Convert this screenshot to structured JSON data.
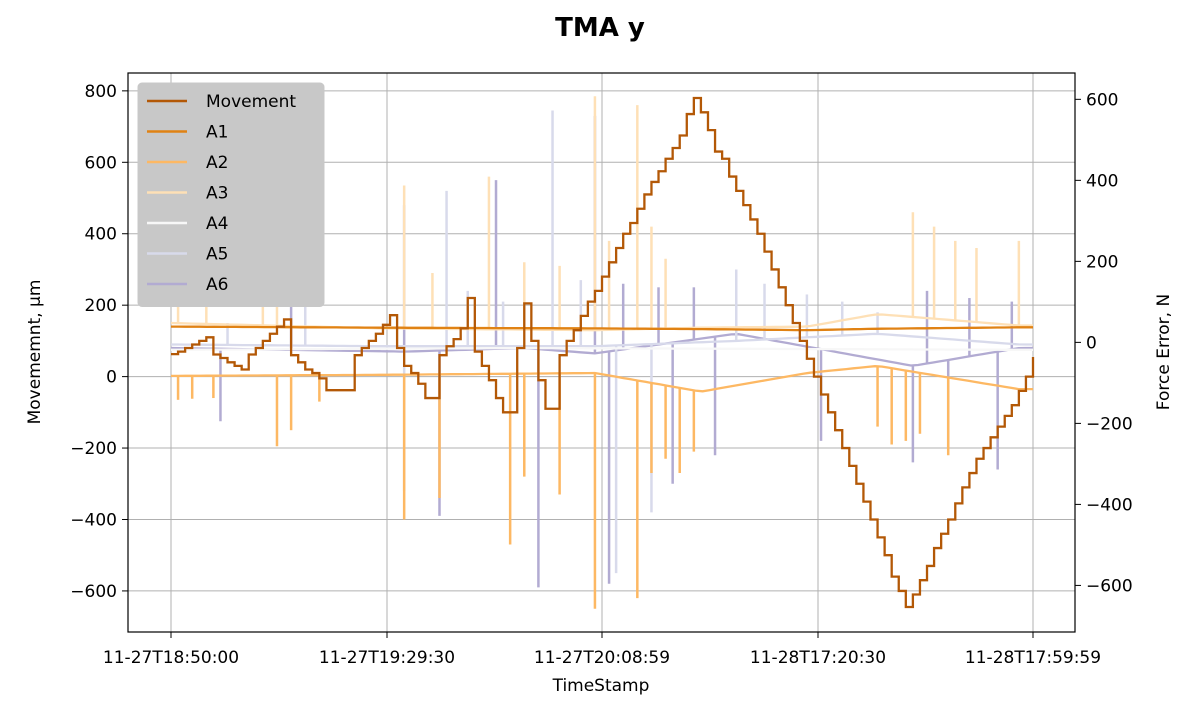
{
  "chart_data": {
    "type": "line",
    "title": "TMA y",
    "xlabel": "TimeStamp",
    "ylabel": "Movememnt, $\\mu$m",
    "ylabel_text": "Movememnt, μm",
    "ylabel_right": "Force Error, N",
    "x_tick_labels": [
      "11-27T18:50:00",
      "11-27T19:29:30",
      "11-27T20:08:59",
      "11-28T17:20:30",
      "11-28T17:59:59"
    ],
    "ylim": [
      -715,
      850
    ],
    "ylim_right": [
      -715,
      665
    ],
    "y_ticks": [
      -600,
      -400,
      -200,
      0,
      200,
      400,
      600,
      800
    ],
    "y_ticks_right": [
      -600,
      -400,
      -200,
      0,
      200,
      400,
      600
    ],
    "grid": true,
    "legend_position": "top-left",
    "series": [
      {
        "name": "Movement",
        "axis": "left",
        "color": "#b35806",
        "step": true,
        "values": [
          [
            0.0,
            63
          ],
          [
            0.01,
            70
          ],
          [
            0.02,
            80
          ],
          [
            0.03,
            90
          ],
          [
            0.04,
            100
          ],
          [
            0.05,
            110
          ],
          [
            0.06,
            62
          ],
          [
            0.07,
            52
          ],
          [
            0.08,
            40
          ],
          [
            0.09,
            30
          ],
          [
            0.1,
            20
          ],
          [
            0.11,
            62
          ],
          [
            0.12,
            80
          ],
          [
            0.13,
            100
          ],
          [
            0.14,
            120
          ],
          [
            0.15,
            140
          ],
          [
            0.16,
            160
          ],
          [
            0.17,
            60
          ],
          [
            0.18,
            40
          ],
          [
            0.19,
            20
          ],
          [
            0.2,
            10
          ],
          [
            0.21,
            -5
          ],
          [
            0.22,
            -38
          ],
          [
            0.23,
            -38
          ],
          [
            0.24,
            -38
          ],
          [
            0.25,
            -38
          ],
          [
            0.26,
            60
          ],
          [
            0.27,
            80
          ],
          [
            0.28,
            100
          ],
          [
            0.29,
            120
          ],
          [
            0.3,
            145
          ],
          [
            0.31,
            172
          ],
          [
            0.32,
            80
          ],
          [
            0.33,
            30
          ],
          [
            0.34,
            10
          ],
          [
            0.35,
            -20
          ],
          [
            0.36,
            -60
          ],
          [
            0.37,
            -60
          ],
          [
            0.38,
            60
          ],
          [
            0.39,
            85
          ],
          [
            0.4,
            105
          ],
          [
            0.41,
            135
          ],
          [
            0.42,
            220
          ],
          [
            0.43,
            70
          ],
          [
            0.44,
            30
          ],
          [
            0.45,
            -10
          ],
          [
            0.46,
            -60
          ],
          [
            0.47,
            -100
          ],
          [
            0.48,
            -100
          ],
          [
            0.49,
            80
          ],
          [
            0.5,
            205
          ],
          [
            0.51,
            100
          ],
          [
            0.52,
            -10
          ],
          [
            0.53,
            -90
          ],
          [
            0.54,
            -90
          ],
          [
            0.55,
            60
          ],
          [
            0.56,
            100
          ],
          [
            0.57,
            130
          ],
          [
            0.58,
            170
          ],
          [
            0.59,
            210
          ],
          [
            0.6,
            240
          ],
          [
            0.61,
            280
          ],
          [
            0.62,
            320
          ],
          [
            0.63,
            360
          ],
          [
            0.64,
            400
          ],
          [
            0.65,
            430
          ],
          [
            0.66,
            470
          ],
          [
            0.67,
            510
          ],
          [
            0.68,
            545
          ],
          [
            0.69,
            575
          ],
          [
            0.7,
            610
          ],
          [
            0.71,
            640
          ],
          [
            0.72,
            675
          ],
          [
            0.73,
            735
          ],
          [
            0.74,
            780
          ],
          [
            0.75,
            740
          ],
          [
            0.76,
            690
          ],
          [
            0.77,
            630
          ],
          [
            0.78,
            610
          ],
          [
            0.79,
            560
          ],
          [
            0.8,
            520
          ],
          [
            0.81,
            480
          ],
          [
            0.82,
            440
          ],
          [
            0.83,
            400
          ],
          [
            0.84,
            350
          ],
          [
            0.85,
            300
          ],
          [
            0.86,
            250
          ],
          [
            0.87,
            200
          ],
          [
            0.88,
            150
          ],
          [
            0.89,
            100
          ],
          [
            0.9,
            50
          ],
          [
            0.91,
            0
          ],
          [
            0.92,
            -50
          ],
          [
            0.93,
            -100
          ],
          [
            0.94,
            -150
          ],
          [
            0.95,
            -200
          ],
          [
            0.96,
            -250
          ],
          [
            0.97,
            -300
          ],
          [
            0.98,
            -350
          ],
          [
            0.99,
            -400
          ],
          [
            1.0,
            -450
          ],
          [
            1.01,
            -500
          ],
          [
            1.02,
            -560
          ],
          [
            1.03,
            -600
          ],
          [
            1.04,
            -645
          ],
          [
            1.05,
            -610
          ],
          [
            1.06,
            -570
          ],
          [
            1.07,
            -530
          ],
          [
            1.08,
            -480
          ],
          [
            1.09,
            -440
          ],
          [
            1.1,
            -400
          ],
          [
            1.11,
            -355
          ],
          [
            1.12,
            -310
          ],
          [
            1.13,
            -270
          ],
          [
            1.14,
            -230
          ],
          [
            1.15,
            -200
          ],
          [
            1.16,
            -170
          ],
          [
            1.17,
            -140
          ],
          [
            1.18,
            -110
          ],
          [
            1.19,
            -80
          ],
          [
            1.2,
            -40
          ],
          [
            1.21,
            0
          ],
          [
            1.22,
            55
          ]
        ]
      },
      {
        "name": "A1",
        "axis": "left",
        "color": "#e08214",
        "base_values": [
          [
            0,
            140
          ],
          [
            0.3,
            137
          ],
          [
            0.6,
            135
          ],
          [
            0.75,
            133
          ],
          [
            0.9,
            130
          ],
          [
            1.0,
            134
          ],
          [
            1.2,
            138
          ]
        ],
        "spikes": []
      },
      {
        "name": "A2",
        "axis": "left",
        "color": "#fdb863",
        "base_values": [
          [
            0,
            2
          ],
          [
            0.3,
            5
          ],
          [
            0.6,
            10
          ],
          [
            0.75,
            -42
          ],
          [
            0.9,
            10
          ],
          [
            1.0,
            30
          ],
          [
            1.2,
            -35
          ]
        ],
        "spikes": [
          [
            0.01,
            -65
          ],
          [
            0.03,
            -62
          ],
          [
            0.06,
            -60
          ],
          [
            0.15,
            -195
          ],
          [
            0.17,
            -150
          ],
          [
            0.21,
            -70
          ],
          [
            0.33,
            -400
          ],
          [
            0.38,
            -340
          ],
          [
            0.48,
            -470
          ],
          [
            0.5,
            -280
          ],
          [
            0.55,
            -330
          ],
          [
            0.6,
            -650
          ],
          [
            0.66,
            -620
          ],
          [
            0.68,
            -270
          ],
          [
            0.7,
            -230
          ],
          [
            0.72,
            -270
          ],
          [
            0.74,
            -210
          ],
          [
            1.0,
            -140
          ],
          [
            1.02,
            -190
          ],
          [
            1.04,
            -180
          ],
          [
            1.06,
            -160
          ],
          [
            1.1,
            -220
          ]
        ]
      },
      {
        "name": "A3",
        "axis": "left",
        "color": "#fee0b6",
        "base_values": [
          [
            0,
            150
          ],
          [
            0.3,
            135
          ],
          [
            0.6,
            130
          ],
          [
            0.75,
            137
          ],
          [
            0.9,
            140
          ],
          [
            1.0,
            175
          ],
          [
            1.2,
            143
          ]
        ],
        "spikes": [
          [
            0.01,
            210
          ],
          [
            0.05,
            200
          ],
          [
            0.13,
            210
          ],
          [
            0.15,
            220
          ],
          [
            0.33,
            535
          ],
          [
            0.37,
            290
          ],
          [
            0.45,
            560
          ],
          [
            0.5,
            320
          ],
          [
            0.55,
            310
          ],
          [
            0.6,
            785
          ],
          [
            0.62,
            380
          ],
          [
            0.66,
            760
          ],
          [
            0.68,
            420
          ],
          [
            0.7,
            330
          ],
          [
            1.05,
            460
          ],
          [
            1.08,
            420
          ],
          [
            1.11,
            380
          ],
          [
            1.14,
            360
          ],
          [
            1.2,
            380
          ]
        ]
      },
      {
        "name": "A4",
        "axis": "left",
        "color": "#f7f7f7",
        "base_values": [
          [
            0,
            75
          ],
          [
            0.5,
            80
          ],
          [
            1.2,
            75
          ]
        ],
        "spikes": []
      },
      {
        "name": "A5",
        "axis": "left",
        "color": "#d8daeb",
        "base_values": [
          [
            0,
            90
          ],
          [
            0.3,
            85
          ],
          [
            0.6,
            85
          ],
          [
            0.8,
            100
          ],
          [
            1.0,
            120
          ],
          [
            1.2,
            90
          ]
        ],
        "spikes": [
          [
            0.08,
            150
          ],
          [
            0.19,
            220
          ],
          [
            0.33,
            -320
          ],
          [
            0.39,
            520
          ],
          [
            0.42,
            240
          ],
          [
            0.47,
            210
          ],
          [
            0.54,
            745
          ],
          [
            0.58,
            270
          ],
          [
            0.63,
            -550
          ],
          [
            0.68,
            -380
          ],
          [
            0.8,
            300
          ],
          [
            0.84,
            260
          ],
          [
            0.9,
            230
          ],
          [
            0.95,
            210
          ],
          [
            1.0,
            180
          ]
        ]
      },
      {
        "name": "A6",
        "axis": "left",
        "color": "#b2abd2",
        "base_values": [
          [
            0,
            80
          ],
          [
            0.33,
            70
          ],
          [
            0.5,
            80
          ],
          [
            0.6,
            65
          ],
          [
            0.8,
            120
          ],
          [
            1.05,
            30
          ],
          [
            1.2,
            80
          ]
        ],
        "spikes": [
          [
            0.07,
            -125
          ],
          [
            0.17,
            490
          ],
          [
            0.33,
            480
          ],
          [
            0.38,
            -390
          ],
          [
            0.46,
            550
          ],
          [
            0.52,
            -590
          ],
          [
            0.6,
            730
          ],
          [
            0.62,
            -580
          ],
          [
            0.64,
            260
          ],
          [
            0.69,
            250
          ],
          [
            0.71,
            -300
          ],
          [
            0.74,
            250
          ],
          [
            0.77,
            -220
          ],
          [
            0.92,
            -180
          ],
          [
            1.05,
            -240
          ],
          [
            1.07,
            240
          ],
          [
            1.1,
            -200
          ],
          [
            1.13,
            220
          ],
          [
            1.17,
            -260
          ],
          [
            1.19,
            210
          ]
        ]
      }
    ]
  }
}
